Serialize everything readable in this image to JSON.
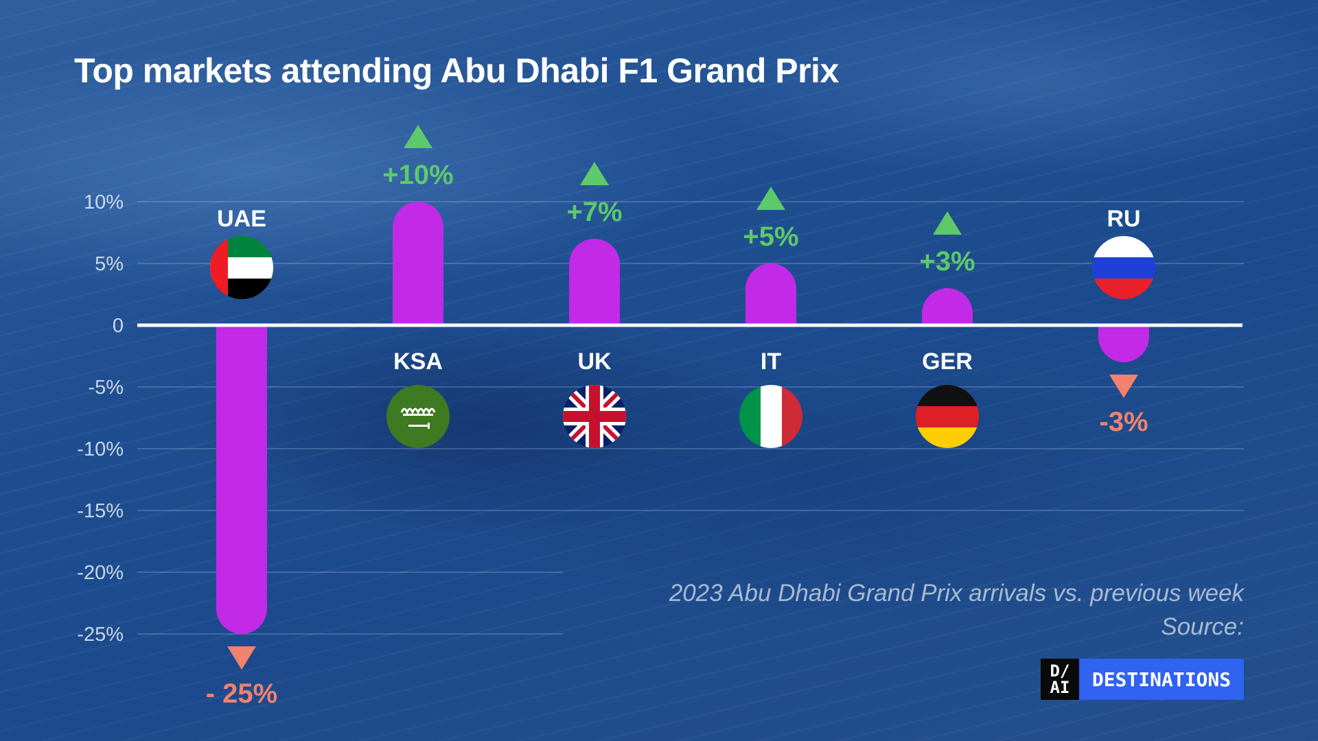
{
  "title": "Top markets attending Abu Dhabi F1 Grand Prix",
  "note_line1": "2023 Abu Dhabi Grand Prix arrivals vs. previous week",
  "note_line2": "Source:",
  "logo": {
    "mark_top": "D/",
    "mark_bottom": "AI",
    "text": "DESTINATIONS"
  },
  "colors": {
    "bar": "#c22ae8",
    "up": "#5ec96a",
    "down": "#f2826d",
    "zero_line": "#ffffff",
    "grid": "rgba(210,220,235,0.22)"
  },
  "chart_data": {
    "type": "bar",
    "title": "Top markets attending Abu Dhabi F1 Grand Prix",
    "xlabel": "",
    "ylabel": "",
    "ylim": [
      -25,
      10
    ],
    "yticks": [
      10,
      5,
      0,
      -5,
      -10,
      -15,
      -20,
      -25
    ],
    "ytick_labels": [
      "10%",
      "5%",
      "0",
      "-5%",
      "-10%",
      "-15%",
      "-20%",
      "-25%"
    ],
    "grid": true,
    "categories": [
      "UAE",
      "KSA",
      "UK",
      "IT",
      "GER",
      "RU"
    ],
    "values": [
      -25,
      10,
      7,
      5,
      3,
      -3
    ],
    "value_labels": [
      "- 25%",
      "+10%",
      "+7%",
      "+5%",
      "+3%",
      "-3%"
    ],
    "flags": [
      "uae-flag",
      "saudi-arabia-flag",
      "uk-flag",
      "italy-flag",
      "germany-flag",
      "russia-flag"
    ]
  }
}
